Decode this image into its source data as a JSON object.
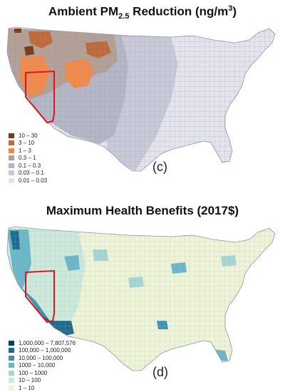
{
  "panel_c": {
    "title_main": "Ambient PM",
    "title_sub": "2.5",
    "title_rest": " Reduction (ng/m",
    "title_sup": "3",
    "title_end": ")",
    "tag": "(c)",
    "legend": [
      {
        "label": "10 – 30",
        "color": "#7a3a14"
      },
      {
        "label": "3 – 10",
        "color": "#c06a3c"
      },
      {
        "label": "1 – 3",
        "color": "#f28a4b"
      },
      {
        "label": "0.3 – 1",
        "color": "#b5a095"
      },
      {
        "label": "0.1 – 0.3",
        "color": "#b5b7c6"
      },
      {
        "label": "0.03 – 0.1",
        "color": "#c9cad8"
      },
      {
        "label": "0.01 – 0.03",
        "color": "#e2e3ec"
      }
    ]
  },
  "panel_d": {
    "title": "Maximum Health Benefits (2017$)",
    "tag": "(d)",
    "legend": [
      {
        "label": "1,000,000 – 7,807,576",
        "color": "#0c3c6a"
      },
      {
        "label": "100,000 – 1,000,000",
        "color": "#1f6a8e"
      },
      {
        "label": "10,000 – 100,000",
        "color": "#3d93b4"
      },
      {
        "label": "1000 – 10,000",
        "color": "#6bb7c9"
      },
      {
        "label": "100 – 1000",
        "color": "#a6d6d4"
      },
      {
        "label": "10 – 100",
        "color": "#cde9db"
      },
      {
        "label": "1 – 10",
        "color": "#eef4d7"
      }
    ]
  },
  "colors": {
    "highlight_outline": "#e0161e",
    "county_border": "#8f93a6"
  }
}
